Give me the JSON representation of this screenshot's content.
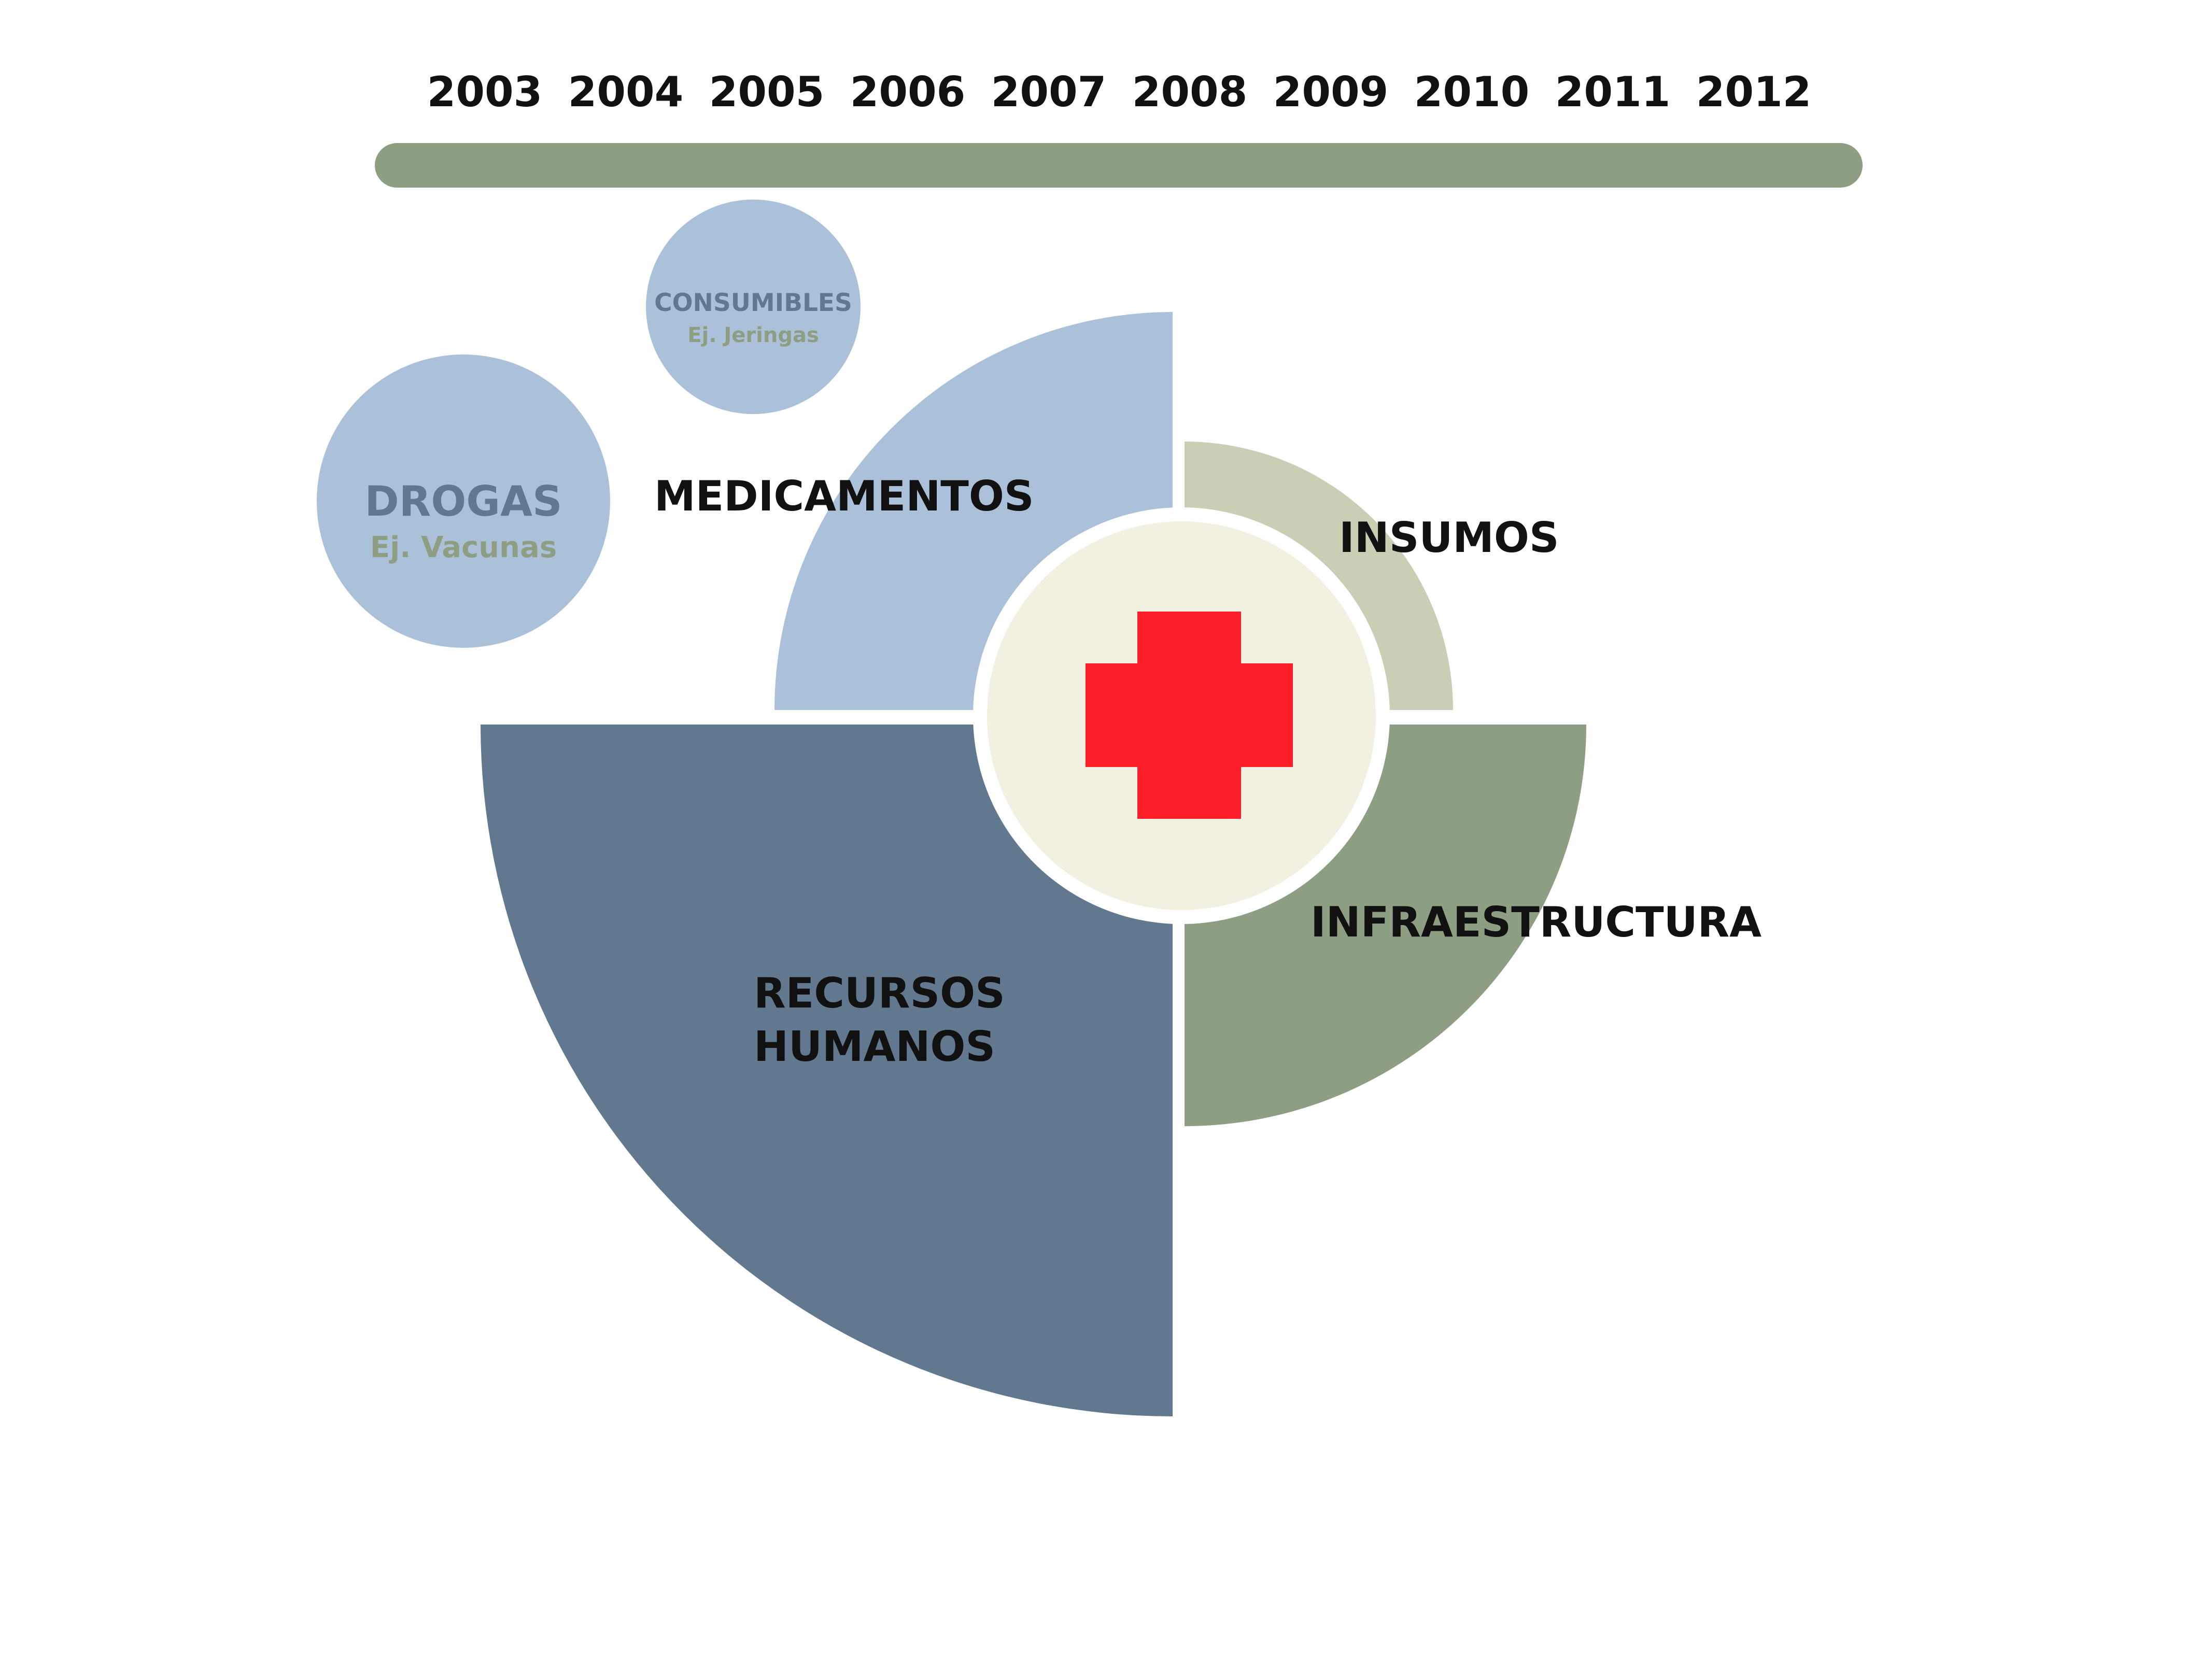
{
  "timeline": {
    "years": [
      "2003",
      "2004",
      "2005",
      "2006",
      "2007",
      "2008",
      "2009",
      "2010",
      "2011",
      "2012"
    ],
    "bar_color": "#8e9e82"
  },
  "bubbles": {
    "drogas": {
      "title": "DROGAS",
      "subtitle": "Ej. Vacunas"
    },
    "consumibles": {
      "title": "CONSUMIBLES",
      "subtitle": "Ej. Jeringas"
    }
  },
  "segments": {
    "medicamentos": {
      "label": "MEDICAMENTOS"
    },
    "insumos": {
      "label": "INSUMOS"
    },
    "infraestructura": {
      "label": "INFRAESTRUCTURA"
    },
    "recursos_humanos": {
      "label_line1": "RECURSOS",
      "label_line2": "HUMANOS"
    }
  },
  "center": {
    "icon": "red-cross-icon"
  },
  "colors": {
    "light_blue": "#abc1d9",
    "dark_blue": "#62788f",
    "sage_green": "#8e9e82",
    "beige": "#cbcdb5",
    "center_fill": "#f2f0e0",
    "cross_red": "#ff1f2a",
    "bubble_title": "#62788f",
    "bubble_subtitle": "#8e9e82"
  }
}
